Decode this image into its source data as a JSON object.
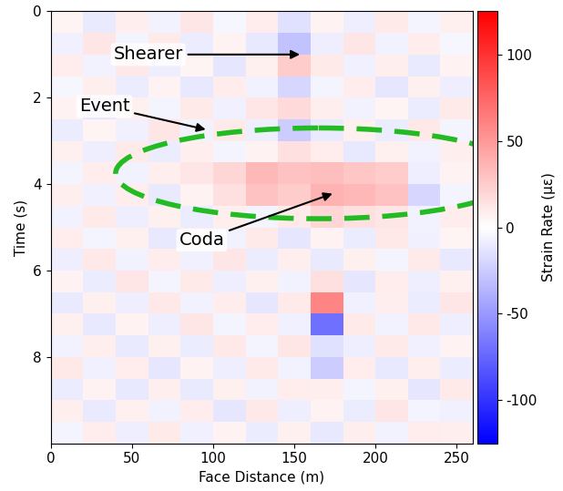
{
  "chart_data": {
    "type": "heatmap",
    "xlabel": "Face Distance (m)",
    "ylabel": "Time (s)",
    "xlim": [
      0,
      260
    ],
    "xticks": [
      0,
      50,
      100,
      150,
      200,
      250
    ],
    "ylim": [
      10,
      0
    ],
    "yticks": [
      0,
      2,
      4,
      6,
      8
    ],
    "color": "bwr",
    "annotations": [
      "Shearer",
      "Event",
      "Coda"
    ],
    "x_edges": [
      0,
      20,
      40,
      60,
      80,
      100,
      120,
      140,
      160,
      180,
      200,
      220,
      240,
      260
    ],
    "y_edges": [
      0,
      0.5,
      1,
      1.5,
      2,
      2.5,
      3,
      3.5,
      4,
      4.5,
      5,
      5.5,
      6,
      6.5,
      7,
      7.5,
      8,
      8.5,
      9,
      9.5,
      10
    ],
    "cells": [
      [
        5,
        -10,
        8,
        -6,
        12,
        -4,
        9,
        -15,
        6,
        -8,
        10,
        -5,
        7
      ],
      [
        -7,
        12,
        -5,
        10,
        -9,
        6,
        -11,
        -30,
        -8,
        12,
        -6,
        9,
        -4
      ],
      [
        9,
        -6,
        11,
        -8,
        5,
        -12,
        7,
        25,
        10,
        -7,
        8,
        -10,
        6
      ],
      [
        -4,
        8,
        -9,
        6,
        -11,
        9,
        -6,
        -20,
        -5,
        9,
        -12,
        7,
        -8
      ],
      [
        6,
        -12,
        7,
        -5,
        10,
        -7,
        12,
        18,
        8,
        -6,
        5,
        -9,
        10
      ],
      [
        -9,
        5,
        -7,
        12,
        -6,
        10,
        -8,
        -25,
        -10,
        7,
        -9,
        11,
        -5
      ],
      [
        7,
        -8,
        10,
        -9,
        8,
        -5,
        6,
        15,
        9,
        -11,
        7,
        -6,
        8
      ],
      [
        -5,
        9,
        -6,
        8,
        12,
        20,
        35,
        30,
        32,
        28,
        25,
        -8,
        6
      ],
      [
        8,
        -7,
        9,
        -10,
        6,
        15,
        30,
        25,
        38,
        35,
        30,
        -20,
        -5
      ],
      [
        -6,
        10,
        -8,
        7,
        -9,
        8,
        -5,
        10,
        20,
        15,
        12,
        -6,
        9
      ],
      [
        9,
        -5,
        7,
        -11,
        8,
        -6,
        10,
        -12,
        6,
        -9,
        11,
        -7,
        5
      ],
      [
        -8,
        11,
        -6,
        9,
        -7,
        12,
        -9,
        8,
        -10,
        7,
        -5,
        10,
        -11
      ],
      [
        6,
        -9,
        12,
        -5,
        10,
        -8,
        7,
        -6,
        15,
        -12,
        9,
        -8,
        7
      ],
      [
        -10,
        7,
        -8,
        11,
        -6,
        9,
        -12,
        10,
        60,
        -7,
        8,
        -9,
        12
      ],
      [
        7,
        -11,
        6,
        -8,
        12,
        -5,
        9,
        -7,
        -70,
        10,
        -6,
        11,
        -8
      ],
      [
        -6,
        8,
        -10,
        7,
        -9,
        11,
        -5,
        12,
        -15,
        -8,
        10,
        -7,
        6
      ],
      [
        11,
        -7,
        9,
        -12,
        6,
        -8,
        10,
        -6,
        -25,
        9,
        -11,
        8,
        -9
      ],
      [
        -9,
        6,
        -11,
        8,
        -10,
        7,
        -6,
        9,
        8,
        -5,
        7,
        -12,
        10
      ],
      [
        8,
        -10,
        7,
        -6,
        9,
        -12,
        11,
        -8,
        6,
        -9,
        12,
        -5,
        -7
      ],
      [
        -5,
        9,
        -8,
        10,
        -7,
        6,
        -9,
        7,
        -11,
        8,
        -6,
        9,
        8
      ]
    ],
    "colorbar": {
      "range": [
        -125,
        125
      ],
      "ticks": [
        -100,
        -50,
        0,
        50,
        100
      ],
      "label": "Strain Rate (με)"
    }
  }
}
